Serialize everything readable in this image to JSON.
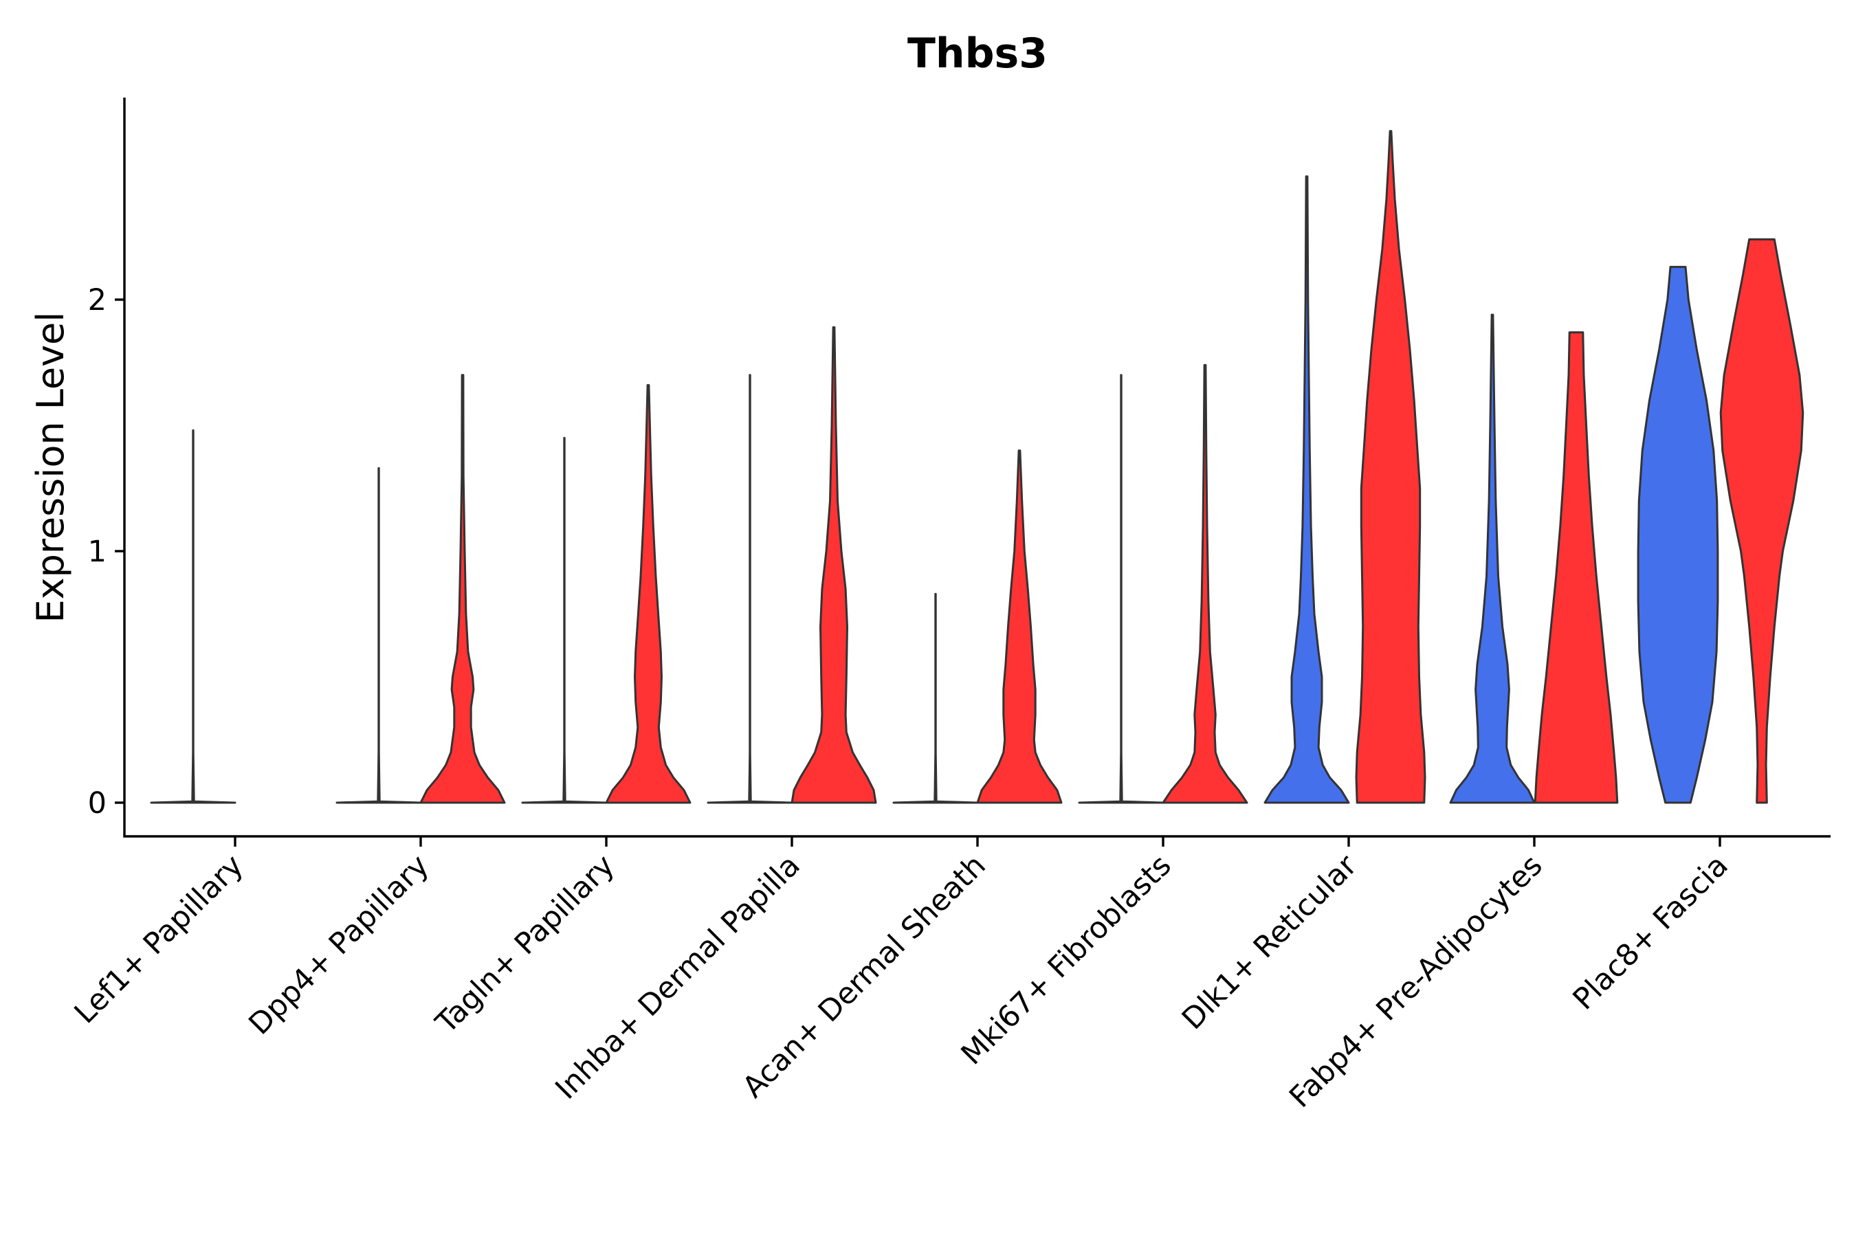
{
  "chart_data": {
    "type": "violin",
    "title": "Thbs3",
    "xlabel": "",
    "ylabel": "Expression Level",
    "ylim": [
      -0.13,
      2.8
    ],
    "yticks": [
      0,
      1,
      2
    ],
    "colors": {
      "group_a": "#4470EB",
      "group_b": "#FF3333",
      "outline": "#333333"
    },
    "categories": [
      "Lef1+ Papillary",
      "Dpp4+ Papillary",
      "Tagln+ Papillary",
      "Inhba+ Dermal Papilla",
      "Acan+ Dermal Sheath",
      "Mki67+ Fibroblasts",
      "Dlk1+ Reticular",
      "Fabp4+ Pre-Adipocytes",
      "Plac8+ Fascia"
    ],
    "violins": [
      {
        "category": 0,
        "group": "a",
        "min": 0,
        "max": 1.48,
        "profile": [
          [
            0,
            1
          ],
          [
            0.005,
            0.02
          ],
          [
            0.2,
            0.004
          ],
          [
            1.48,
            0.004
          ]
        ]
      },
      {
        "category": 0,
        "group": "b",
        "min": 0,
        "max": 0,
        "profile": []
      },
      {
        "category": 1,
        "group": "a",
        "min": 0,
        "max": 1.33,
        "profile": [
          [
            0,
            1
          ],
          [
            0.005,
            0.02
          ],
          [
            0.2,
            0.004
          ],
          [
            1.33,
            0.004
          ]
        ]
      },
      {
        "category": 1,
        "group": "b",
        "min": 0,
        "max": 1.7,
        "profile": [
          [
            0,
            1.0
          ],
          [
            0.05,
            0.85
          ],
          [
            0.1,
            0.6
          ],
          [
            0.15,
            0.4
          ],
          [
            0.2,
            0.28
          ],
          [
            0.3,
            0.2
          ],
          [
            0.38,
            0.2
          ],
          [
            0.45,
            0.26
          ],
          [
            0.5,
            0.24
          ],
          [
            0.6,
            0.13
          ],
          [
            0.75,
            0.08
          ],
          [
            1.0,
            0.05
          ],
          [
            1.3,
            0.02
          ],
          [
            1.7,
            0.015
          ]
        ]
      },
      {
        "category": 2,
        "group": "a",
        "min": 0,
        "max": 1.45,
        "profile": [
          [
            0,
            1
          ],
          [
            0.005,
            0.02
          ],
          [
            0.2,
            0.004
          ],
          [
            1.45,
            0.004
          ]
        ]
      },
      {
        "category": 2,
        "group": "b",
        "min": 0,
        "max": 1.66,
        "profile": [
          [
            0,
            1.0
          ],
          [
            0.05,
            0.85
          ],
          [
            0.1,
            0.6
          ],
          [
            0.15,
            0.42
          ],
          [
            0.22,
            0.3
          ],
          [
            0.3,
            0.25
          ],
          [
            0.4,
            0.3
          ],
          [
            0.5,
            0.32
          ],
          [
            0.6,
            0.3
          ],
          [
            0.75,
            0.24
          ],
          [
            0.9,
            0.18
          ],
          [
            1.1,
            0.12
          ],
          [
            1.3,
            0.07
          ],
          [
            1.5,
            0.04
          ],
          [
            1.66,
            0.015
          ]
        ]
      },
      {
        "category": 3,
        "group": "a",
        "min": 0,
        "max": 1.7,
        "profile": [
          [
            0,
            1
          ],
          [
            0.005,
            0.02
          ],
          [
            0.2,
            0.004
          ],
          [
            1.7,
            0.004
          ]
        ]
      },
      {
        "category": 3,
        "group": "b",
        "min": 0,
        "max": 1.89,
        "profile": [
          [
            0,
            1.0
          ],
          [
            0.05,
            0.95
          ],
          [
            0.1,
            0.8
          ],
          [
            0.15,
            0.62
          ],
          [
            0.2,
            0.45
          ],
          [
            0.28,
            0.3
          ],
          [
            0.35,
            0.28
          ],
          [
            0.5,
            0.3
          ],
          [
            0.7,
            0.32
          ],
          [
            0.85,
            0.28
          ],
          [
            1.0,
            0.18
          ],
          [
            1.2,
            0.09
          ],
          [
            1.5,
            0.05
          ],
          [
            1.89,
            0.015
          ]
        ]
      },
      {
        "category": 4,
        "group": "a",
        "min": 0,
        "max": 0.83,
        "profile": [
          [
            0,
            1
          ],
          [
            0.005,
            0.02
          ],
          [
            0.2,
            0.004
          ],
          [
            0.83,
            0.004
          ]
        ]
      },
      {
        "category": 4,
        "group": "b",
        "min": 0,
        "max": 1.4,
        "profile": [
          [
            0,
            1.0
          ],
          [
            0.05,
            0.9
          ],
          [
            0.1,
            0.68
          ],
          [
            0.15,
            0.5
          ],
          [
            0.2,
            0.38
          ],
          [
            0.25,
            0.35
          ],
          [
            0.35,
            0.38
          ],
          [
            0.45,
            0.38
          ],
          [
            0.55,
            0.33
          ],
          [
            0.7,
            0.27
          ],
          [
            0.85,
            0.2
          ],
          [
            1.0,
            0.12
          ],
          [
            1.2,
            0.06
          ],
          [
            1.4,
            0.015
          ]
        ]
      },
      {
        "category": 5,
        "group": "a",
        "min": 0,
        "max": 1.7,
        "profile": [
          [
            0,
            1
          ],
          [
            0.005,
            0.02
          ],
          [
            0.2,
            0.004
          ],
          [
            1.7,
            0.004
          ]
        ]
      },
      {
        "category": 5,
        "group": "b",
        "min": 0,
        "max": 1.74,
        "profile": [
          [
            0,
            1.0
          ],
          [
            0.05,
            0.8
          ],
          [
            0.1,
            0.55
          ],
          [
            0.15,
            0.35
          ],
          [
            0.2,
            0.25
          ],
          [
            0.28,
            0.23
          ],
          [
            0.35,
            0.25
          ],
          [
            0.45,
            0.2
          ],
          [
            0.6,
            0.12
          ],
          [
            0.8,
            0.08
          ],
          [
            1.1,
            0.05
          ],
          [
            1.4,
            0.03
          ],
          [
            1.74,
            0.015
          ]
        ]
      },
      {
        "category": 6,
        "group": "a",
        "min": 0,
        "max": 2.49,
        "profile": [
          [
            0,
            1.0
          ],
          [
            0.05,
            0.82
          ],
          [
            0.1,
            0.55
          ],
          [
            0.15,
            0.38
          ],
          [
            0.22,
            0.28
          ],
          [
            0.3,
            0.3
          ],
          [
            0.4,
            0.36
          ],
          [
            0.5,
            0.36
          ],
          [
            0.6,
            0.28
          ],
          [
            0.75,
            0.18
          ],
          [
            0.9,
            0.14
          ],
          [
            1.1,
            0.1
          ],
          [
            1.4,
            0.07
          ],
          [
            1.7,
            0.05
          ],
          [
            2.0,
            0.03
          ],
          [
            2.49,
            0.015
          ]
        ]
      },
      {
        "category": 6,
        "group": "b",
        "min": 0,
        "max": 2.67,
        "profile": [
          [
            0,
            0.8
          ],
          [
            0.1,
            0.82
          ],
          [
            0.2,
            0.8
          ],
          [
            0.35,
            0.72
          ],
          [
            0.5,
            0.68
          ],
          [
            0.7,
            0.66
          ],
          [
            0.9,
            0.68
          ],
          [
            1.1,
            0.7
          ],
          [
            1.25,
            0.7
          ],
          [
            1.4,
            0.64
          ],
          [
            1.6,
            0.56
          ],
          [
            1.8,
            0.46
          ],
          [
            2.0,
            0.34
          ],
          [
            2.2,
            0.2
          ],
          [
            2.4,
            0.1
          ],
          [
            2.55,
            0.05
          ],
          [
            2.67,
            0.015
          ]
        ]
      },
      {
        "category": 7,
        "group": "a",
        "min": 0,
        "max": 1.94,
        "profile": [
          [
            0,
            1.0
          ],
          [
            0.05,
            0.86
          ],
          [
            0.1,
            0.62
          ],
          [
            0.15,
            0.44
          ],
          [
            0.22,
            0.34
          ],
          [
            0.3,
            0.35
          ],
          [
            0.45,
            0.4
          ],
          [
            0.55,
            0.36
          ],
          [
            0.7,
            0.24
          ],
          [
            0.9,
            0.14
          ],
          [
            1.2,
            0.08
          ],
          [
            1.5,
            0.05
          ],
          [
            1.94,
            0.015
          ]
        ]
      },
      {
        "category": 7,
        "group": "b",
        "min": 0,
        "max": 1.87,
        "profile": [
          [
            0,
            0.98
          ],
          [
            0.1,
            0.95
          ],
          [
            0.2,
            0.9
          ],
          [
            0.35,
            0.82
          ],
          [
            0.5,
            0.72
          ],
          [
            0.7,
            0.6
          ],
          [
            0.9,
            0.48
          ],
          [
            1.1,
            0.38
          ],
          [
            1.3,
            0.3
          ],
          [
            1.5,
            0.24
          ],
          [
            1.7,
            0.18
          ],
          [
            1.87,
            0.16
          ]
        ]
      },
      {
        "category": 8,
        "group": "a",
        "min": 0,
        "max": 2.13,
        "profile": [
          [
            0,
            0.3
          ],
          [
            0.1,
            0.45
          ],
          [
            0.25,
            0.65
          ],
          [
            0.4,
            0.82
          ],
          [
            0.6,
            0.92
          ],
          [
            0.8,
            0.95
          ],
          [
            1.0,
            0.95
          ],
          [
            1.2,
            0.93
          ],
          [
            1.4,
            0.85
          ],
          [
            1.6,
            0.68
          ],
          [
            1.8,
            0.45
          ],
          [
            2.0,
            0.25
          ],
          [
            2.13,
            0.18
          ]
        ]
      },
      {
        "category": 8,
        "group": "b",
        "min": 0,
        "max": 2.24,
        "profile": [
          [
            0,
            0.12
          ],
          [
            0.15,
            0.1
          ],
          [
            0.3,
            0.12
          ],
          [
            0.5,
            0.2
          ],
          [
            0.7,
            0.3
          ],
          [
            0.9,
            0.42
          ],
          [
            1.0,
            0.5
          ],
          [
            1.2,
            0.75
          ],
          [
            1.4,
            0.94
          ],
          [
            1.55,
            0.98
          ],
          [
            1.7,
            0.9
          ],
          [
            1.9,
            0.68
          ],
          [
            2.1,
            0.45
          ],
          [
            2.24,
            0.3
          ]
        ]
      }
    ]
  }
}
